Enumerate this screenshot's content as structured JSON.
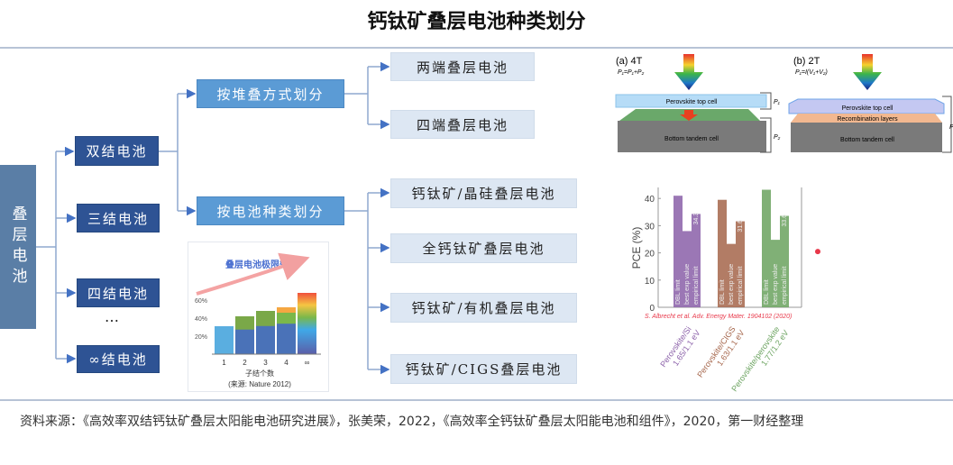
{
  "title": "钙钛矿叠层电池种类划分",
  "tree": {
    "root": "叠层电池",
    "junctions": [
      "双结电池",
      "三结电池",
      "四结电池",
      "∞结电池"
    ],
    "ellipsis": "…",
    "categories": [
      "按堆叠方式划分",
      "按电池种类划分"
    ],
    "stacking_types": [
      "两端叠层电池",
      "四端叠层电池"
    ],
    "cell_types": [
      "钙钛矿/晶硅叠层电池",
      "全钙钛矿叠层电池",
      "钙钛矿/有机叠层电池",
      "钙钛矿/CIGS叠层电池"
    ]
  },
  "schematic": {
    "a_label": "(a) 4T",
    "a_formula": "P₁=P₁+P₂",
    "b_label": "(b) 2T",
    "b_formula": "P₁=I(V₁+V₂)",
    "top_cell": "Perovskite top cell",
    "recombination": "Recombination layers",
    "bottom_cell": "Bottom tandem cell",
    "p1": "P₁",
    "p2": "P₂",
    "p": "P"
  },
  "chart_data": [
    {
      "type": "bar",
      "title": "叠层电池极限效率",
      "xlabel": "子结个数",
      "source": "(来源: Nature 2012)",
      "categories": [
        "1",
        "2",
        "3",
        "4",
        "∞"
      ],
      "values": [
        31,
        42,
        48,
        52,
        68
      ],
      "yticks": [
        "20%",
        "40%",
        "60%"
      ],
      "ylim": [
        0,
        70
      ]
    },
    {
      "type": "bar",
      "ylabel": "PCE (%)",
      "ylim": [
        0,
        45
      ],
      "yticks": [
        "0",
        "10",
        "20",
        "30",
        "40"
      ],
      "bar_labels": [
        "DBL limit",
        "best exp value",
        "empirical limit"
      ],
      "categories": [
        "Perovskite/Si\n1.65/1.1 eV",
        "Perovskite/CIGS\n1.63/1.1 eV",
        "Perovskite/perovskite\n1.77/1.2 eV"
      ],
      "category_colors": [
        "#8a5fa8",
        "#a5654a",
        "#6aa25e"
      ],
      "values": [
        [
          41,
          28,
          34.3
        ],
        [
          39.5,
          23.3,
          31.6
        ],
        [
          43.2,
          24.8,
          33.6
        ]
      ],
      "value_labels": [
        "34.3",
        "31.6",
        "33.6"
      ],
      "citation": "S. Albrecht et al. Adv. Energy Mater. 1904102 (2020)",
      "grid": false
    }
  ],
  "footer": "资料来源：《高效率双结钙钛矿叠层太阳能电池研究进展》，张美荣，2022，《高效率全钙钛矿叠层太阳能电池和组件》，2020，第一财经整理"
}
